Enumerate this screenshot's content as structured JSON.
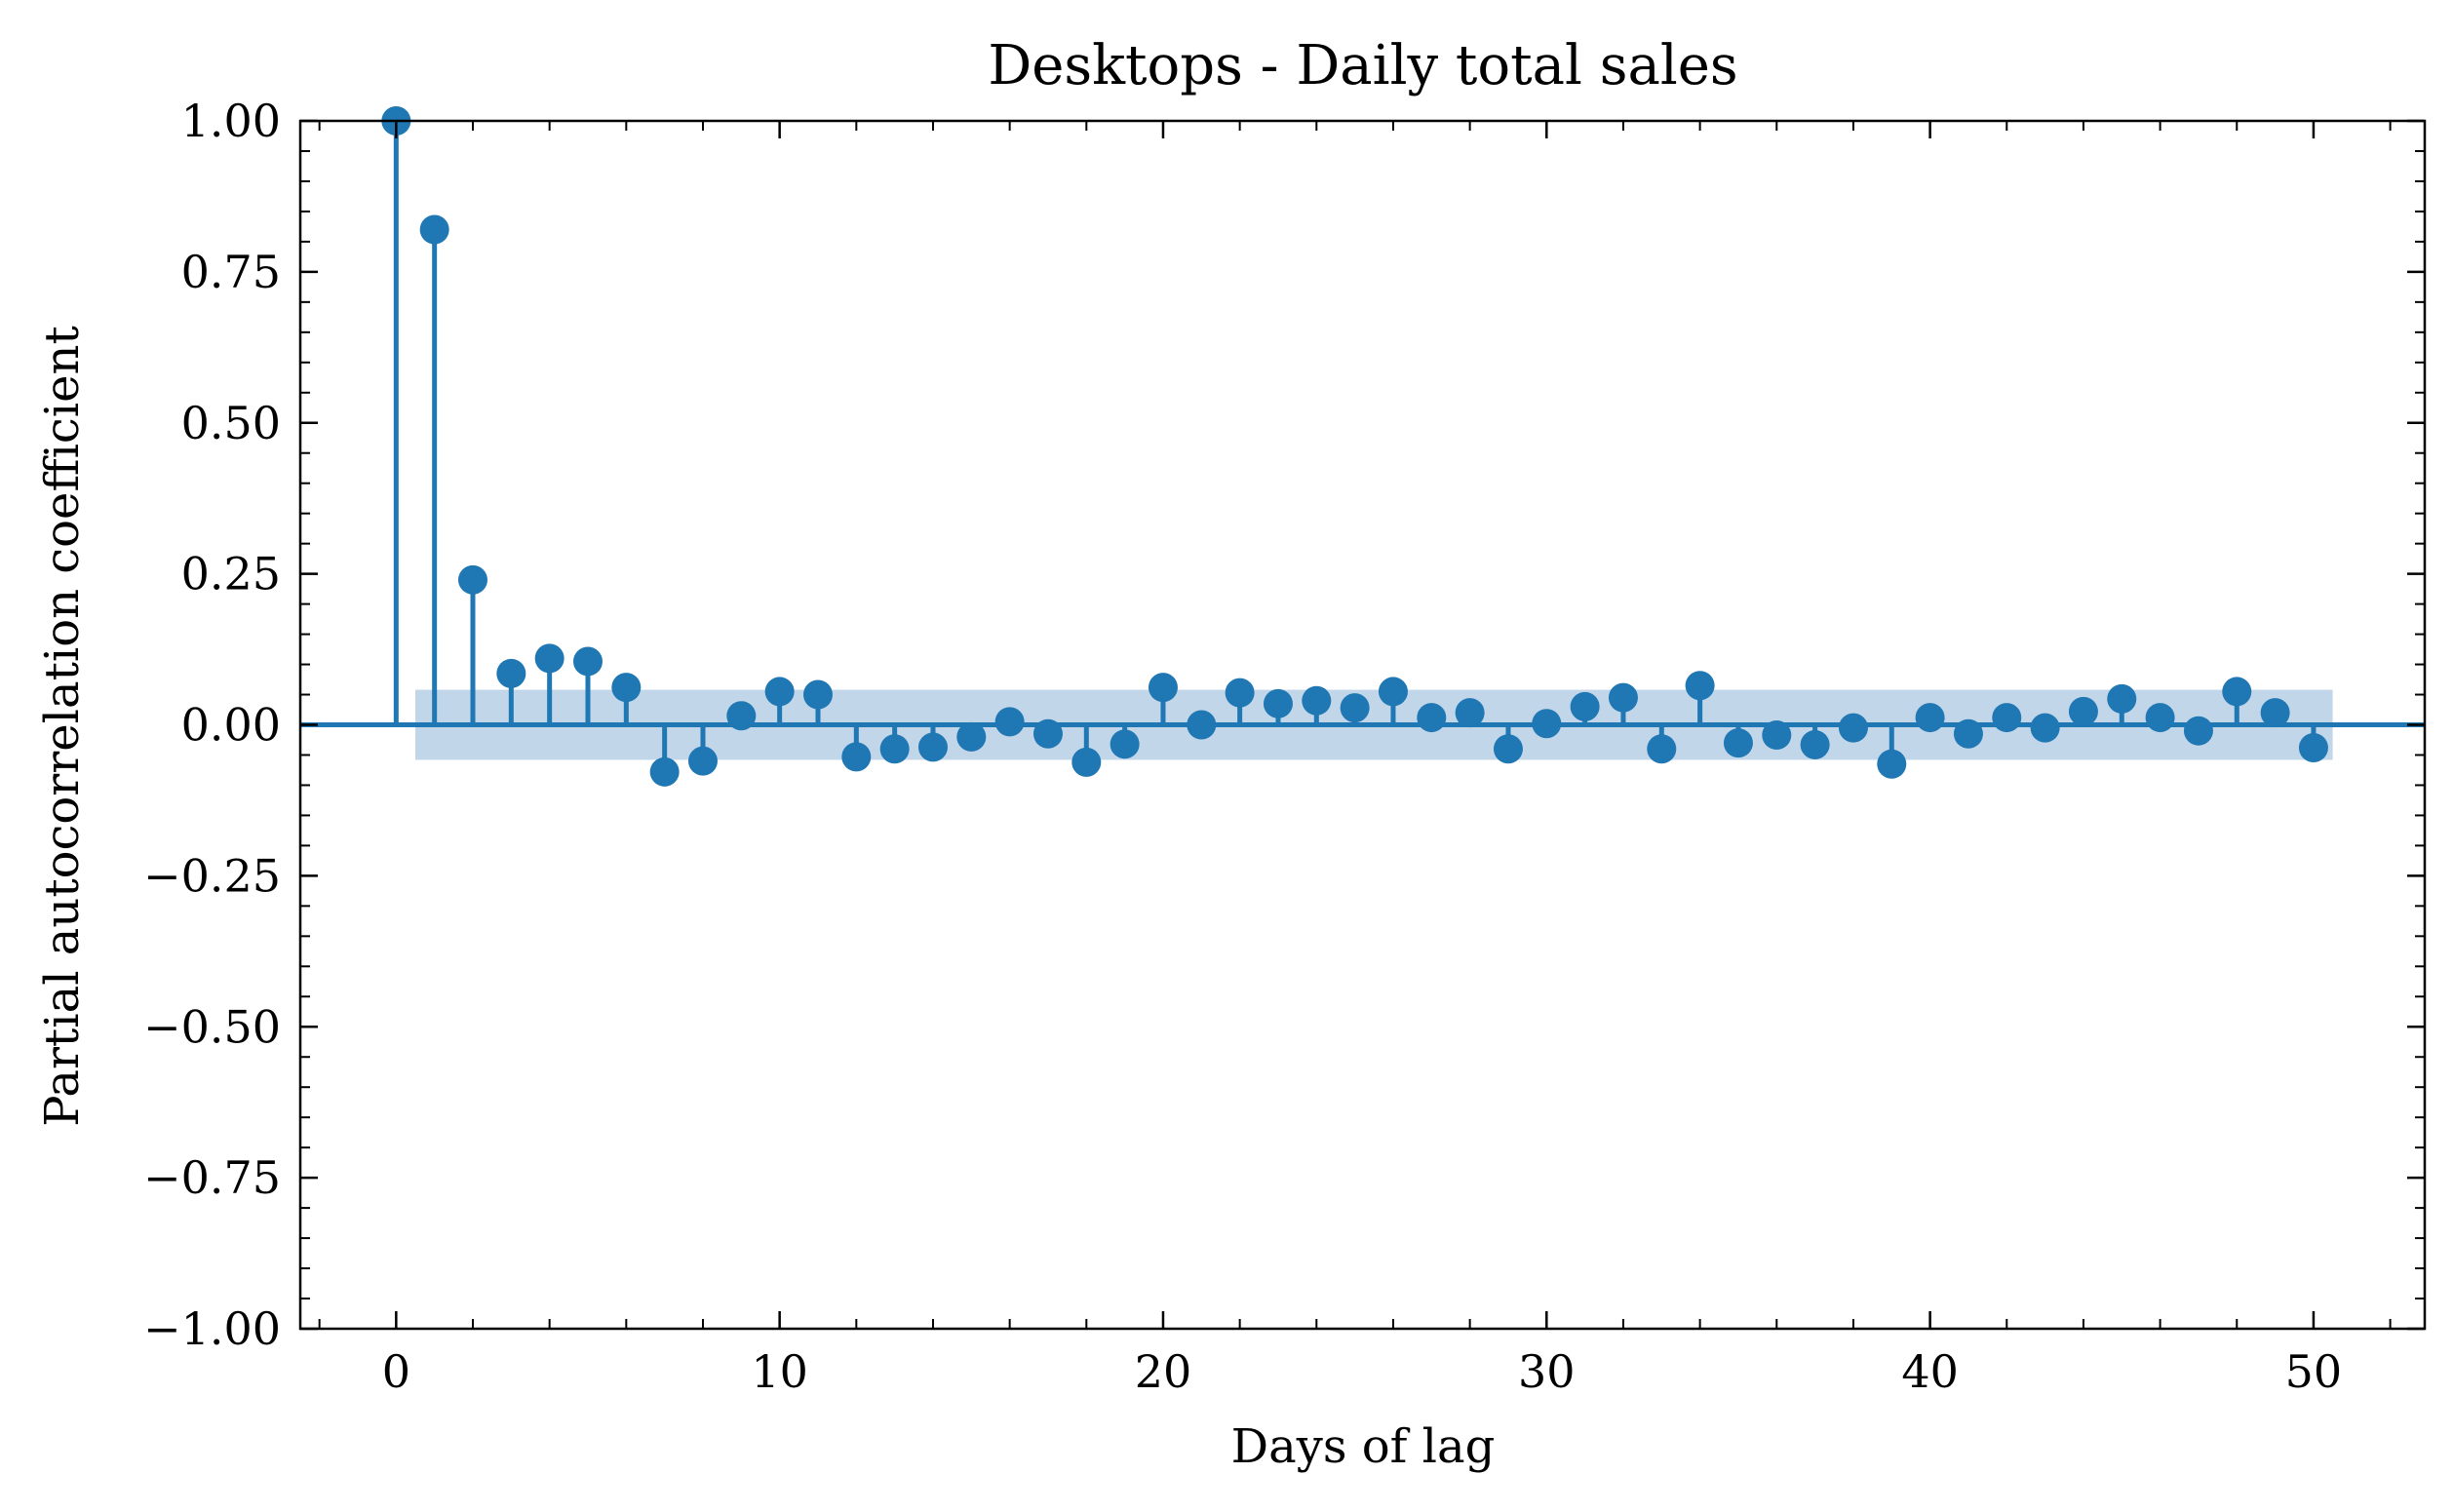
{
  "chart_data": {
    "type": "stem",
    "title": "Desktops - Daily total sales",
    "xlabel": "Days of lag",
    "ylabel": "Partial autocorrelation coefficient",
    "xlim": [
      -2.5,
      52.9
    ],
    "ylim": [
      -1.0,
      1.0
    ],
    "x_ticks": [
      0,
      10,
      20,
      30,
      40,
      50
    ],
    "x_tick_labels": [
      "0",
      "10",
      "20",
      "30",
      "40",
      "50"
    ],
    "y_ticks": [
      1.0,
      0.75,
      0.5,
      0.25,
      0.0,
      -0.25,
      -0.5,
      -0.75,
      -1.0
    ],
    "y_tick_labels": [
      "1.00",
      "0.75",
      "0.50",
      "0.25",
      "0.00",
      "−0.25",
      "−0.50",
      "−0.75",
      "−1.00"
    ],
    "confidence_band": {
      "x_from": 0.5,
      "x_to": 50.5,
      "upper": 0.058,
      "lower": -0.058
    },
    "grid": false,
    "colors": {
      "stem": "#1f77b4",
      "band": "#c1d6e9",
      "axes": "#000000"
    },
    "x": [
      0,
      1,
      2,
      3,
      4,
      5,
      6,
      7,
      8,
      9,
      10,
      11,
      12,
      13,
      14,
      15,
      16,
      17,
      18,
      19,
      20,
      21,
      22,
      23,
      24,
      25,
      26,
      27,
      28,
      29,
      30,
      31,
      32,
      33,
      34,
      35,
      36,
      37,
      38,
      39,
      40,
      41,
      42,
      43,
      44,
      45,
      46,
      47,
      48,
      49,
      50
    ],
    "values": [
      1.0,
      0.82,
      0.24,
      0.085,
      0.11,
      0.105,
      0.062,
      -0.078,
      -0.06,
      0.015,
      0.055,
      0.05,
      -0.053,
      -0.04,
      -0.037,
      -0.02,
      0.005,
      -0.015,
      -0.062,
      -0.032,
      0.062,
      0.0,
      0.053,
      0.035,
      0.04,
      0.028,
      0.055,
      0.012,
      0.02,
      -0.04,
      0.002,
      0.03,
      0.045,
      -0.04,
      0.065,
      -0.03,
      -0.017,
      -0.033,
      -0.005,
      -0.065,
      0.012,
      -0.015,
      0.012,
      -0.005,
      0.022,
      0.043,
      0.012,
      -0.01,
      0.055,
      0.02,
      -0.038
    ]
  }
}
